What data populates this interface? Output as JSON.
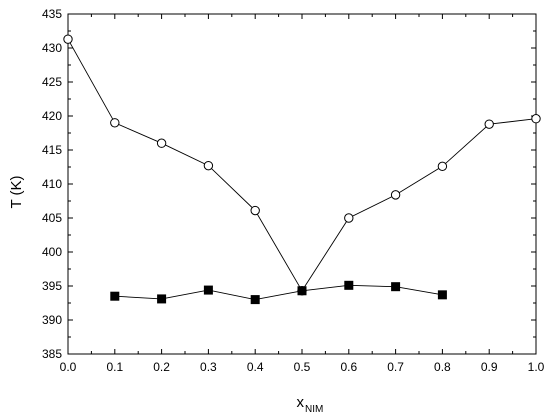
{
  "chart_data": {
    "type": "line",
    "title": "",
    "xlabel": "x",
    "xlabel_subscript": "NIM",
    "ylabel": "T (K)",
    "xlim": [
      0.0,
      1.0
    ],
    "ylim": [
      385,
      435
    ],
    "xticks": [
      "0.0",
      "0.1",
      "0.2",
      "0.3",
      "0.4",
      "0.5",
      "0.6",
      "0.7",
      "0.8",
      "0.9",
      "1.0"
    ],
    "yticks": [
      "385",
      "390",
      "395",
      "400",
      "405",
      "410",
      "415",
      "420",
      "425",
      "430",
      "435"
    ],
    "grid": false,
    "series": [
      {
        "marker": "open-circle",
        "color": "#000000",
        "points": [
          {
            "x": 0.0,
            "y": 431.3
          },
          {
            "x": 0.1,
            "y": 419.0
          },
          {
            "x": 0.2,
            "y": 416.0
          },
          {
            "x": 0.3,
            "y": 412.7
          },
          {
            "x": 0.4,
            "y": 406.1
          },
          {
            "x": 0.5,
            "y": 394.3
          },
          {
            "x": 0.6,
            "y": 405.0
          },
          {
            "x": 0.7,
            "y": 408.4
          },
          {
            "x": 0.8,
            "y": 412.6
          },
          {
            "x": 0.9,
            "y": 418.8
          },
          {
            "x": 1.0,
            "y": 419.6
          }
        ]
      },
      {
        "marker": "filled-square",
        "color": "#000000",
        "points": [
          {
            "x": 0.1,
            "y": 393.5
          },
          {
            "x": 0.2,
            "y": 393.1
          },
          {
            "x": 0.3,
            "y": 394.4
          },
          {
            "x": 0.4,
            "y": 393.0
          },
          {
            "x": 0.5,
            "y": 394.3
          },
          {
            "x": 0.6,
            "y": 395.1
          },
          {
            "x": 0.7,
            "y": 394.9
          },
          {
            "x": 0.8,
            "y": 393.7
          }
        ]
      }
    ]
  }
}
